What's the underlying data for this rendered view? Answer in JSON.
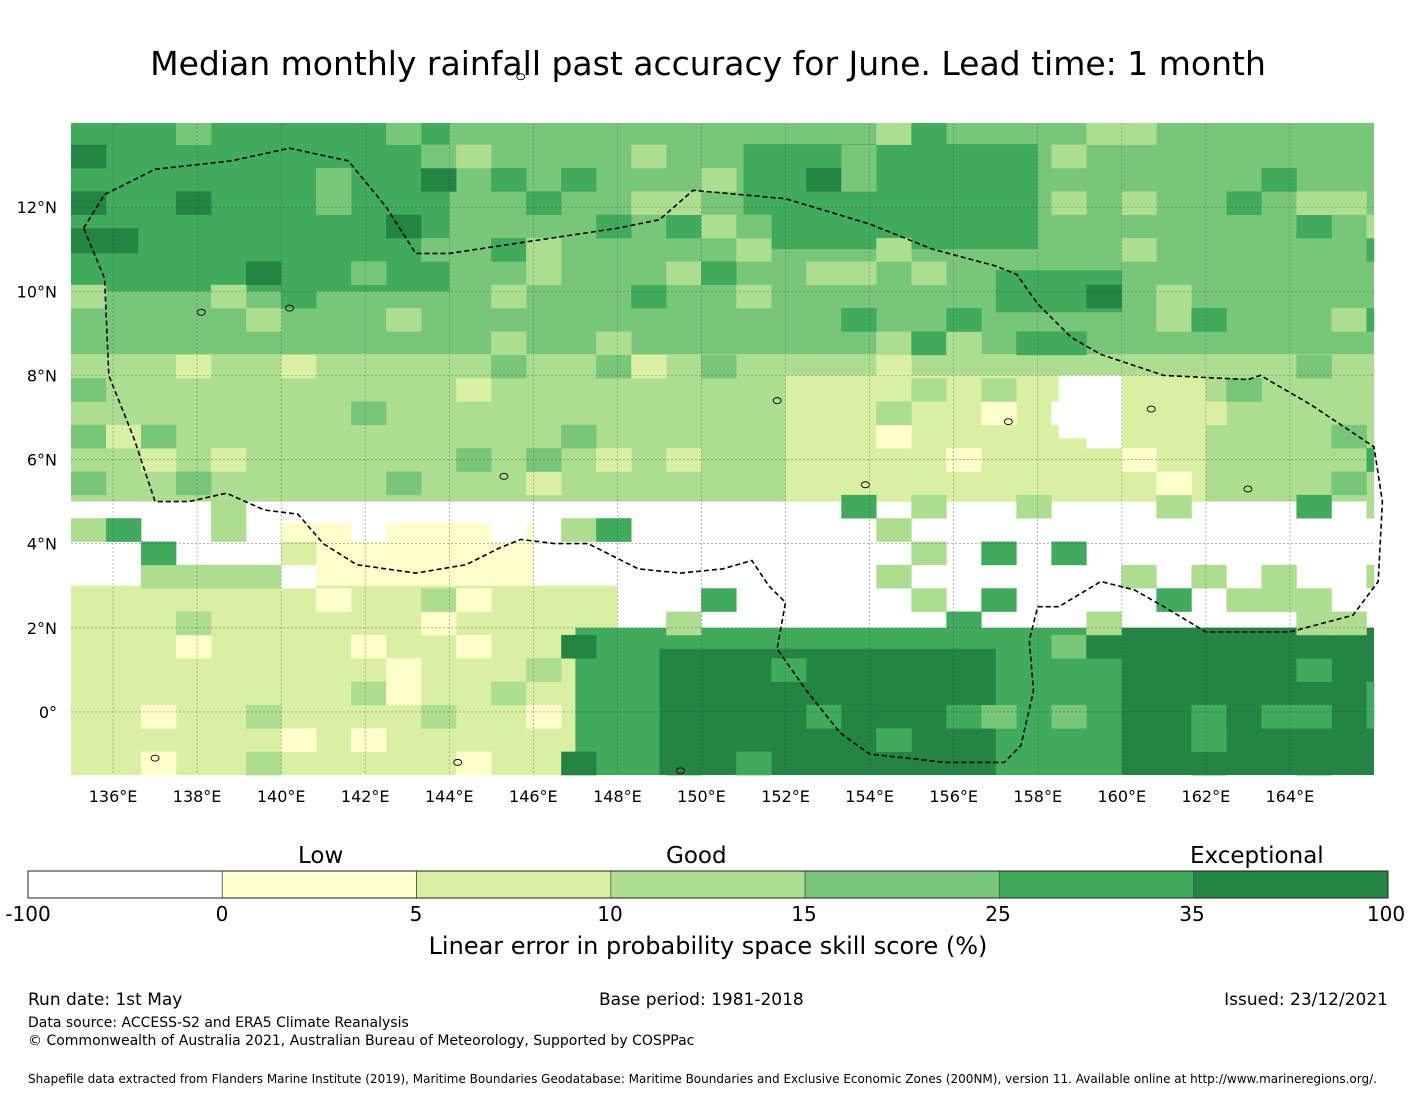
{
  "title": "Median monthly rainfall past accuracy for June. Lead time: 1 month",
  "map": {
    "lon_labels": [
      "136°E",
      "138°E",
      "140°E",
      "142°E",
      "144°E",
      "146°E",
      "148°E",
      "150°E",
      "152°E",
      "154°E",
      "156°E",
      "158°E",
      "160°E",
      "162°E",
      "164°E"
    ],
    "lat_labels": [
      "12°N",
      "10°N",
      "8°N",
      "6°N",
      "4°N",
      "2°N",
      "0°"
    ],
    "lon_range": [
      135,
      166
    ],
    "lat_range": [
      -1.5,
      14
    ],
    "gridlines": true,
    "eez_boundary": "dashed",
    "skill_regions": [
      {
        "class": 4,
        "lat": [
          8.5,
          14
        ],
        "lon": [
          135,
          166
        ],
        "note": "Good (15-25) background north"
      },
      {
        "class": 5,
        "lat": [
          10,
          14
        ],
        "lon": [
          135,
          144
        ],
        "note": "Very good (25-35) northwest"
      },
      {
        "class": 5,
        "lat": [
          11,
          13.5
        ],
        "lon": [
          151,
          158
        ]
      },
      {
        "class": 5,
        "lat": [
          9.5,
          10.5
        ],
        "lon": [
          157,
          160
        ]
      },
      {
        "class": 6,
        "lat": [
          10.9,
          11.5
        ],
        "lon": [
          135,
          136.6
        ]
      },
      {
        "class": 3,
        "lat": [
          5,
          8.5
        ],
        "lon": [
          135,
          166
        ],
        "note": "Moderate (10-15) band"
      },
      {
        "class": 2,
        "lat": [
          5,
          8
        ],
        "lon": [
          152,
          162
        ]
      },
      {
        "class": 1,
        "lat": [
          2.5,
          4.5
        ],
        "lon": [
          140,
          146
        ],
        "note": "Low (0-5) equatorial west"
      },
      {
        "class": 2,
        "lat": [
          -1.5,
          3
        ],
        "lon": [
          135,
          148
        ]
      },
      {
        "class": 5,
        "lat": [
          -1.5,
          2
        ],
        "lon": [
          147,
          166
        ],
        "note": "Very good south-east"
      },
      {
        "class": 6,
        "lat": [
          -1.5,
          1.5
        ],
        "lon": [
          149,
          157
        ]
      },
      {
        "class": 6,
        "lat": [
          -1.5,
          2
        ],
        "lon": [
          160,
          166
        ],
        "note": "Exceptional (35-100)"
      },
      {
        "class": 0,
        "lat": [
          6.5,
          8
        ],
        "lon": [
          158.5,
          160
        ],
        "note": "Below 0"
      }
    ]
  },
  "colorbar": {
    "categories": [
      {
        "label": "Low"
      },
      {
        "label": "Good"
      },
      {
        "label": "Exceptional"
      }
    ],
    "ticks": [
      "-100",
      "0",
      "5",
      "10",
      "15",
      "25",
      "35",
      "100"
    ],
    "colors": [
      "#ffffff",
      "#ffffcc",
      "#d9f0a3",
      "#addd8e",
      "#78c679",
      "#41ab5d",
      "#238443"
    ],
    "label": "Linear error in probability space skill score (%)"
  },
  "footer": {
    "run_date": "Run date: 1st May",
    "base_period": "Base period: 1981-2018",
    "issued": "Issued: 23/12/2021",
    "data_source": "Data source: ACCESS-S2 and ERA5 Climate Reanalysis",
    "copyright": "© Commonwealth of Australia 2021, Australian Bureau of Meteorology, Supported by COSPPac",
    "shapefile": "Shapefile data extracted from Flanders Marine Institute (2019), Maritime Boundaries Geodatabase: Maritime Boundaries and Exclusive Economic Zones (200NM), version 11. Available online at http://www.marineregions.org/."
  }
}
